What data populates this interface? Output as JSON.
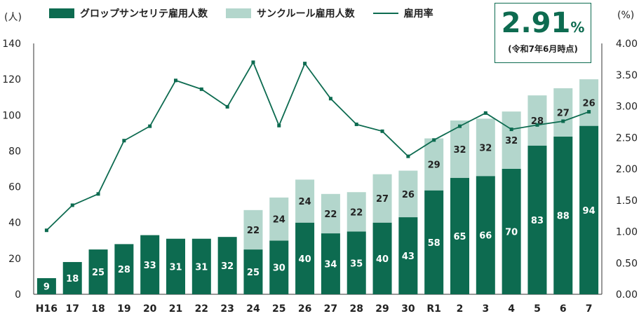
{
  "legend": {
    "item1": "グロップサンセリテ雇用人数",
    "item2": "サンクルール雇用人数",
    "item3": "雇用率"
  },
  "units": {
    "left": "(人)",
    "right": "(%)"
  },
  "callout": {
    "value": "2.91",
    "unit": "%",
    "note": "(令和7年6月時点)"
  },
  "colors": {
    "dark": "#0d6b50",
    "light": "#b3d6cc",
    "line": "#0d6b50",
    "axis": "#333333"
  },
  "chart_data": {
    "type": "bar",
    "stacked": true,
    "categories": [
      "H16",
      "17",
      "18",
      "19",
      "20",
      "21",
      "22",
      "23",
      "24",
      "25",
      "26",
      "27",
      "28",
      "29",
      "30",
      "R1",
      "2",
      "3",
      "4",
      "5",
      "6",
      "7"
    ],
    "series": [
      {
        "name": "グロップサンセリテ雇用人数",
        "values": [
          9,
          18,
          25,
          28,
          33,
          31,
          31,
          32,
          25,
          30,
          40,
          34,
          35,
          40,
          43,
          58,
          65,
          66,
          70,
          83,
          88,
          94
        ]
      },
      {
        "name": "サンクルール雇用人数",
        "values": [
          0,
          0,
          0,
          0,
          0,
          0,
          0,
          0,
          22,
          24,
          24,
          22,
          22,
          27,
          26,
          29,
          32,
          32,
          32,
          28,
          27,
          26
        ]
      }
    ],
    "line_series": {
      "name": "雇用率",
      "values": [
        1.02,
        1.42,
        1.6,
        2.45,
        2.68,
        3.41,
        3.27,
        2.99,
        3.7,
        2.69,
        3.68,
        3.12,
        2.71,
        2.6,
        2.2,
        2.46,
        2.68,
        2.89,
        2.63,
        2.7,
        2.76,
        2.91
      ]
    },
    "y_left": {
      "min": 0,
      "max": 140,
      "ticks": [
        0,
        20,
        40,
        60,
        80,
        100,
        120,
        140
      ]
    },
    "y_right": {
      "min": 0,
      "max": 4,
      "ticks": [
        "0.00",
        "0.50",
        "1.00",
        "1.50",
        "2.00",
        "2.50",
        "3.00",
        "3.50",
        "4.00"
      ]
    },
    "grid": false,
    "legend_position": "top-left"
  }
}
